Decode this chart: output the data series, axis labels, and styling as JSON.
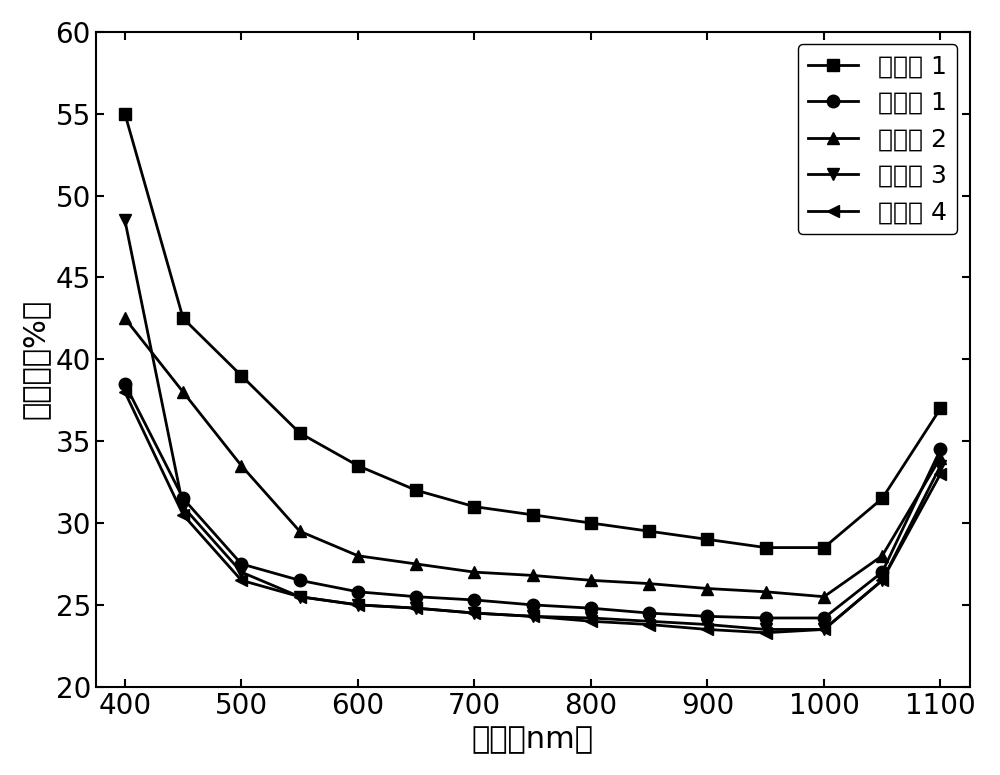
{
  "x": [
    400,
    450,
    500,
    550,
    600,
    650,
    700,
    750,
    800,
    850,
    900,
    950,
    1000,
    1050,
    1100
  ],
  "series": [
    {
      "name": "对比例 1",
      "marker": "s",
      "values": [
        55.0,
        42.5,
        39.0,
        35.5,
        33.5,
        32.0,
        31.0,
        30.5,
        30.0,
        29.5,
        29.0,
        28.5,
        28.5,
        31.5,
        37.0
      ]
    },
    {
      "name": "实施例 1",
      "marker": "o",
      "values": [
        38.5,
        31.5,
        27.5,
        26.5,
        25.8,
        25.5,
        25.3,
        25.0,
        24.8,
        24.5,
        24.3,
        24.2,
        24.2,
        27.0,
        34.5
      ]
    },
    {
      "name": "实施例 2",
      "marker": "^",
      "values": [
        42.5,
        38.0,
        33.5,
        29.5,
        28.0,
        27.5,
        27.0,
        26.8,
        26.5,
        26.3,
        26.0,
        25.8,
        25.5,
        28.0,
        34.0
      ]
    },
    {
      "name": "实施例 3",
      "marker": "v",
      "values": [
        48.5,
        31.0,
        27.0,
        25.5,
        25.0,
        24.8,
        24.5,
        24.3,
        24.2,
        24.0,
        23.8,
        23.5,
        23.5,
        26.5,
        33.5
      ]
    },
    {
      "name": "实施例 4",
      "marker": "<",
      "values": [
        38.0,
        30.5,
        26.5,
        25.5,
        25.0,
        24.8,
        24.5,
        24.3,
        24.0,
        23.8,
        23.5,
        23.3,
        23.5,
        26.5,
        33.0
      ]
    }
  ],
  "xlabel": "波长（nm）",
  "ylabel": "反射率（%）",
  "xlim": [
    375,
    1125
  ],
  "ylim": [
    20,
    60
  ],
  "xticks": [
    400,
    500,
    600,
    700,
    800,
    900,
    1000,
    1100
  ],
  "yticks": [
    20,
    25,
    30,
    35,
    40,
    45,
    50,
    55,
    60
  ],
  "line_color": "#000000",
  "background_color": "#ffffff",
  "label_fontsize": 22,
  "tick_fontsize": 20,
  "legend_fontsize": 18,
  "marker_size": 9,
  "line_width": 2.0
}
